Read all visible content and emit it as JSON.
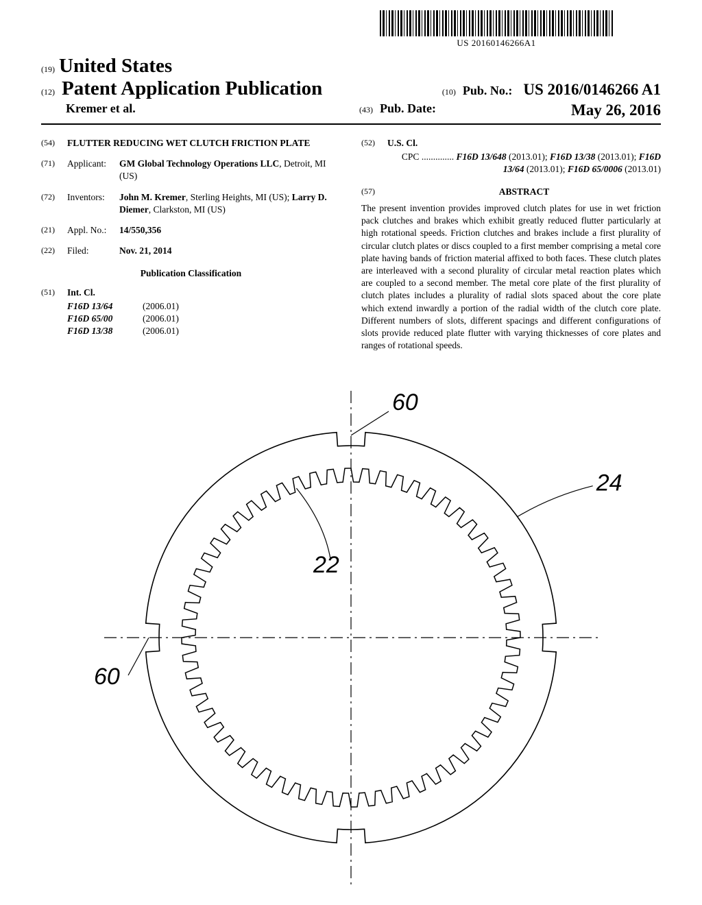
{
  "barcode_text": "US 20160146266A1",
  "header": {
    "code19": "(19)",
    "country": "United States",
    "code12": "(12)",
    "pub_type": "Patent Application Publication",
    "inventors_hdr": "Kremer et al.",
    "code10": "(10)",
    "pubno_label": "Pub. No.:",
    "pubno_value": "US 2016/0146266 A1",
    "code43": "(43)",
    "pubdate_label": "Pub. Date:",
    "pubdate_value": "May 26, 2016"
  },
  "left": {
    "f54": {
      "code": "(54)",
      "title": "FLUTTER REDUCING WET CLUTCH FRICTION PLATE"
    },
    "f71": {
      "code": "(71)",
      "label": "Applicant:",
      "value_bold": "GM Global Technology Operations LLC",
      "value_rest": ", Detroit, MI (US)"
    },
    "f72": {
      "code": "(72)",
      "label": "Inventors:",
      "i1_name": "John M. Kremer",
      "i1_rest": ", Sterling Heights, MI (US); ",
      "i2_name": "Larry D. Diemer",
      "i2_rest": ", Clarkston, MI (US)"
    },
    "f21": {
      "code": "(21)",
      "label": "Appl. No.:",
      "value": "14/550,356"
    },
    "f22": {
      "code": "(22)",
      "label": "Filed:",
      "value": "Nov. 21, 2014"
    },
    "pubclass_heading": "Publication Classification",
    "f51": {
      "code": "(51)",
      "label": "Int. Cl.",
      "rows": [
        {
          "code": "F16D 13/64",
          "year": "(2006.01)"
        },
        {
          "code": "F16D 65/00",
          "year": "(2006.01)"
        },
        {
          "code": "F16D 13/38",
          "year": "(2006.01)"
        }
      ]
    }
  },
  "right": {
    "f52": {
      "code": "(52)",
      "label": "U.S. Cl.",
      "cpc_prefix": "CPC ..............",
      "cpc_parts": [
        {
          "code": "F16D 13/648",
          "year": "(2013.01); ",
          "bold": true
        },
        {
          "code": "F16D 13/38",
          "year": "(2013.01); ",
          "bold": true
        },
        {
          "code": "F16D 13/64",
          "year": "(2013.01); ",
          "bold": true
        },
        {
          "code": "F16D 65/0006",
          "year": "(2013.01)",
          "bold": true
        }
      ]
    },
    "f57": {
      "code": "(57)",
      "heading": "ABSTRACT"
    },
    "abstract": "The present invention provides improved clutch plates for use in wet friction pack clutches and brakes which exhibit greatly reduced flutter particularly at high rotational speeds. Friction clutches and brakes include a first plurality of circular clutch plates or discs coupled to a first member comprising a metal core plate having bands of friction material affixed to both faces. These clutch plates are interleaved with a second plurality of circular metal reaction plates which are coupled to a second member. The metal core plate of the first plurality of clutch plates includes a plurality of radial slots spaced about the core plate which extend inwardly a portion of the radial width of the clutch core plate. Different numbers of slots, different spacings and different configurations of slots provide reduced plate flutter with varying thicknesses of core plates and ranges of rotational speeds."
  },
  "figure": {
    "labels": {
      "r60a": "60",
      "r60b": "60",
      "r24": "24",
      "r22": "22"
    },
    "colors": {
      "stroke": "#000000",
      "bg": "#ffffff"
    },
    "outer_radius": 300,
    "inner_radius_out": 247,
    "inner_radius_in": 227,
    "tooth_count": 60
  }
}
